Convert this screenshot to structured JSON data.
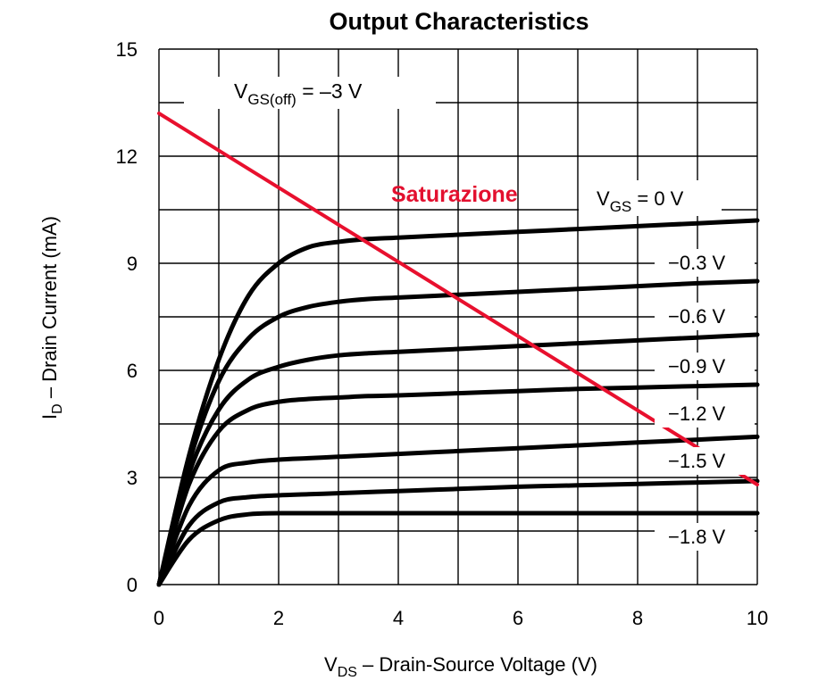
{
  "chart_data": {
    "type": "line",
    "title": "Output Characteristics",
    "xlabel_main": "V",
    "xlabel_sub": "DS",
    "xlabel_rest": " – Drain-Source Voltage (V)",
    "ylabel_main": "I",
    "ylabel_sub": "D",
    "ylabel_rest": " – Drain Current (mA)",
    "xlim": [
      0,
      10
    ],
    "ylim": [
      0,
      15
    ],
    "x_ticks": [
      0,
      2,
      4,
      6,
      8,
      10
    ],
    "y_ticks": [
      0,
      3,
      6,
      9,
      12,
      15
    ],
    "grid": true,
    "grid_x_step": 1,
    "grid_y_step": 1.5,
    "annotation": {
      "main": "V",
      "sub": "GS(off)",
      "rest": " = –3 V"
    },
    "vgs_label": {
      "main": "V",
      "sub": "GS",
      "rest": "  = 0 V"
    },
    "load_line": {
      "label": "Saturazione",
      "color": "#e8102e",
      "x": [
        0,
        10
      ],
      "y": [
        13.2,
        2.8
      ]
    },
    "series": [
      {
        "name": "",
        "x": [
          0,
          0.5,
          1,
          1.5,
          2,
          2.5,
          3,
          3.5,
          4,
          5,
          6,
          7,
          8,
          9,
          10
        ],
        "y": [
          0,
          3.6,
          6.3,
          8.1,
          9.0,
          9.45,
          9.6,
          9.68,
          9.72,
          9.8,
          9.88,
          9.96,
          10.04,
          10.12,
          10.2
        ]
      },
      {
        "name": "−0.3 V",
        "x": [
          0,
          0.5,
          1,
          1.5,
          2,
          2.5,
          3,
          3.5,
          4,
          5,
          6,
          7,
          8,
          9,
          10
        ],
        "y": [
          0,
          3.4,
          5.7,
          6.9,
          7.5,
          7.78,
          7.92,
          8.0,
          8.04,
          8.12,
          8.2,
          8.28,
          8.36,
          8.44,
          8.5
        ]
      },
      {
        "name": "−0.6 V",
        "x": [
          0,
          0.5,
          1,
          1.5,
          2,
          2.5,
          3,
          3.5,
          4,
          5,
          6,
          7,
          8,
          9,
          10
        ],
        "y": [
          0,
          3.1,
          4.9,
          5.75,
          6.1,
          6.3,
          6.42,
          6.48,
          6.52,
          6.6,
          6.68,
          6.76,
          6.84,
          6.92,
          7.0
        ]
      },
      {
        "name": "−0.9 V",
        "x": [
          0,
          0.5,
          1,
          1.5,
          2,
          2.5,
          3,
          3.5,
          4,
          5,
          6,
          7,
          8,
          9,
          10
        ],
        "y": [
          0,
          2.8,
          4.3,
          4.9,
          5.12,
          5.2,
          5.24,
          5.28,
          5.3,
          5.36,
          5.42,
          5.48,
          5.52,
          5.56,
          5.6
        ]
      },
      {
        "name": "−1.2 V",
        "x": [
          0,
          0.5,
          1,
          1.5,
          2,
          2.5,
          3,
          3.5,
          4,
          5,
          6,
          7,
          8,
          9,
          10
        ],
        "y": [
          0,
          2.2,
          3.2,
          3.42,
          3.5,
          3.54,
          3.58,
          3.62,
          3.66,
          3.74,
          3.82,
          3.9,
          3.98,
          4.06,
          4.14
        ]
      },
      {
        "name": "−1.5 V",
        "x": [
          0,
          0.5,
          1,
          1.5,
          2,
          2.5,
          3,
          3.5,
          4,
          5,
          6,
          7,
          8,
          9,
          10
        ],
        "y": [
          0,
          1.65,
          2.3,
          2.45,
          2.5,
          2.53,
          2.56,
          2.59,
          2.62,
          2.68,
          2.74,
          2.78,
          2.82,
          2.86,
          2.9
        ]
      },
      {
        "name": "−1.8 V",
        "x": [
          0,
          0.5,
          1,
          1.5,
          2,
          3,
          4,
          5,
          6,
          7,
          8,
          9,
          10
        ],
        "y": [
          0,
          1.25,
          1.8,
          1.97,
          2.0,
          2.0,
          2.0,
          2.0,
          2.0,
          2.0,
          2.0,
          2.0,
          2.0
        ]
      }
    ]
  }
}
